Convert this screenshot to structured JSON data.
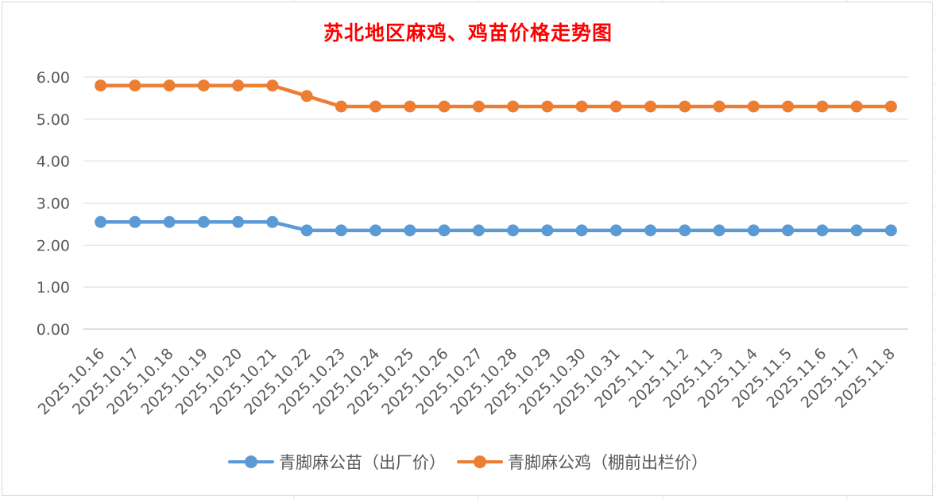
{
  "chart_data": {
    "type": "line",
    "title": "苏北地区麻鸡、鸡苗价格走势图",
    "xlabel": "",
    "ylabel": "",
    "ylim": [
      0,
      6
    ],
    "yticks": [
      "0.00",
      "1.00",
      "2.00",
      "3.00",
      "4.00",
      "5.00",
      "6.00"
    ],
    "grid": "horizontal",
    "legend_position": "bottom",
    "categories": [
      "2025.10.16",
      "2025.10.17",
      "2025.10.18",
      "2025.10.19",
      "2025.10.20",
      "2025.10.21",
      "2025.10.22",
      "2025.10.23",
      "2025.10.24",
      "2025.10.25",
      "2025.10.26",
      "2025.10.27",
      "2025.10.28",
      "2025.10.29",
      "2025.10.30",
      "2025.10.31",
      "2025.11.1",
      "2025.11.2",
      "2025.11.3",
      "2025.11.4",
      "2025.11.5",
      "2025.11.6",
      "2025.11.7",
      "2025.11.8"
    ],
    "series": [
      {
        "name": "青脚麻公苗（出厂价）",
        "color": "#5b9bd5",
        "values": [
          2.55,
          2.55,
          2.55,
          2.55,
          2.55,
          2.55,
          2.35,
          2.35,
          2.35,
          2.35,
          2.35,
          2.35,
          2.35,
          2.35,
          2.35,
          2.35,
          2.35,
          2.35,
          2.35,
          2.35,
          2.35,
          2.35,
          2.35,
          2.35
        ]
      },
      {
        "name": "青脚麻公鸡（棚前出栏价）",
        "color": "#ed7d31",
        "values": [
          5.8,
          5.8,
          5.8,
          5.8,
          5.8,
          5.8,
          5.55,
          5.3,
          5.3,
          5.3,
          5.3,
          5.3,
          5.3,
          5.3,
          5.3,
          5.3,
          5.3,
          5.3,
          5.3,
          5.3,
          5.3,
          5.3,
          5.3,
          5.3
        ]
      }
    ]
  }
}
